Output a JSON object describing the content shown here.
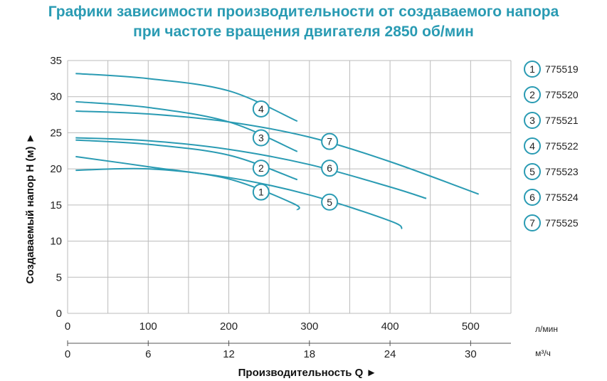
{
  "title_line1": "Графики зависимости производительности от создаваемого напора",
  "title_line2": "при частоте вращения двигателя 2850 об/мин",
  "chart_data": {
    "type": "line",
    "ylabel": "Создаваемый напор H (м) ►",
    "xlabel": "Производительность Q ►",
    "x_unit_primary": "л/мин",
    "x_unit_secondary": "м³/ч",
    "x_ticks_primary": [
      "0",
      "100",
      "200",
      "300",
      "400",
      "500"
    ],
    "x_ticks_secondary": [
      "0",
      "6",
      "12",
      "18",
      "24",
      "30"
    ],
    "y_ticks": [
      "0",
      "5",
      "10",
      "15",
      "20",
      "25",
      "30",
      "35"
    ],
    "xlim": [
      0,
      550
    ],
    "ylim": [
      0,
      35
    ],
    "grid": true,
    "line_color": "#2a9bb3",
    "series": [
      {
        "name": "775519",
        "label": "1",
        "points": [
          [
            10,
            21.7
          ],
          [
            100,
            20.3
          ],
          [
            200,
            18.6
          ],
          [
            280,
            15.2
          ],
          [
            285,
            14.3
          ]
        ],
        "label_at": [
          240,
          16.8
        ]
      },
      {
        "name": "775520",
        "label": "2",
        "points": [
          [
            10,
            24.0
          ],
          [
            100,
            23.4
          ],
          [
            200,
            21.9
          ],
          [
            285,
            18.5
          ]
        ],
        "label_at": [
          240,
          20.1
        ]
      },
      {
        "name": "775521",
        "label": "3",
        "points": [
          [
            10,
            29.3
          ],
          [
            100,
            28.5
          ],
          [
            200,
            26.5
          ],
          [
            285,
            22.4
          ]
        ],
        "label_at": [
          240,
          24.3
        ]
      },
      {
        "name": "775522",
        "label": "4",
        "points": [
          [
            10,
            33.2
          ],
          [
            100,
            32.5
          ],
          [
            200,
            30.8
          ],
          [
            285,
            26.6
          ]
        ],
        "label_at": [
          240,
          28.3
        ]
      },
      {
        "name": "775523",
        "label": "5",
        "points": [
          [
            10,
            19.8
          ],
          [
            100,
            20.0
          ],
          [
            200,
            18.8
          ],
          [
            300,
            16.4
          ],
          [
            400,
            12.8
          ],
          [
            415,
            11.7
          ]
        ],
        "label_at": [
          325,
          15.4
        ]
      },
      {
        "name": "775524",
        "label": "6",
        "points": [
          [
            10,
            24.3
          ],
          [
            100,
            23.9
          ],
          [
            200,
            22.7
          ],
          [
            300,
            20.6
          ],
          [
            400,
            17.5
          ],
          [
            445,
            15.9
          ]
        ],
        "label_at": [
          325,
          20.1
        ]
      },
      {
        "name": "775525",
        "label": "7",
        "points": [
          [
            10,
            28.0
          ],
          [
            100,
            27.6
          ],
          [
            200,
            26.5
          ],
          [
            300,
            24.4
          ],
          [
            400,
            21.0
          ],
          [
            510,
            16.5
          ]
        ],
        "label_at": [
          325,
          23.8
        ]
      }
    ]
  }
}
